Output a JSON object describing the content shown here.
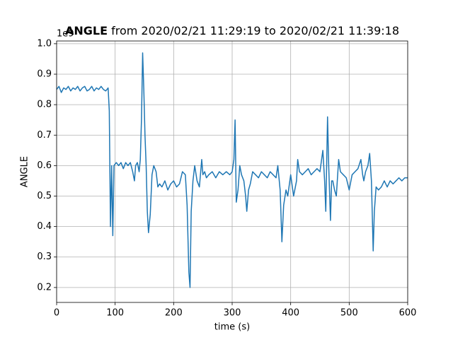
{
  "chart_data": {
    "type": "line",
    "title_bold": "ANGLE",
    "title": "from 2020/02/21 11:29:19 to 2020/02/21 11:39:18",
    "x_label": "time (s)",
    "y_label": "ANGLE",
    "offset_text": "1e9",
    "xlim": [
      0,
      600
    ],
    "ylim": [
      0.151,
      1.009
    ],
    "xticks": [
      0,
      100,
      200,
      300,
      400,
      500,
      600
    ],
    "yticks": [
      0.2,
      0.3,
      0.4,
      0.5,
      0.6,
      0.7,
      0.8,
      0.9,
      {
        "value": 1,
        "label": "1.0"
      }
    ],
    "grid": true,
    "series": [
      {
        "name": "ANGLE",
        "color": "#1f77b4",
        "x": [
          0,
          4,
          8,
          12,
          16,
          20,
          24,
          28,
          32,
          36,
          40,
          44,
          48,
          52,
          56,
          60,
          64,
          68,
          72,
          76,
          80,
          84,
          88,
          90,
          92,
          94,
          96,
          98,
          102,
          106,
          110,
          114,
          118,
          122,
          126,
          130,
          133,
          135,
          138,
          141,
          143,
          145,
          147,
          149,
          151,
          153,
          155,
          157,
          160,
          163,
          166,
          170,
          173,
          176,
          180,
          185,
          190,
          195,
          200,
          205,
          210,
          215,
          220,
          223,
          226,
          228,
          230,
          233,
          236,
          240,
          244,
          248,
          250,
          253,
          256,
          260,
          266,
          272,
          278,
          284,
          290,
          296,
          300,
          303,
          305,
          307,
          310,
          313,
          316,
          320,
          323,
          325,
          328,
          331,
          335,
          340,
          345,
          350,
          355,
          360,
          365,
          370,
          375,
          378,
          382,
          385,
          388,
          392,
          395,
          400,
          405,
          410,
          412,
          415,
          420,
          425,
          430,
          435,
          440,
          445,
          450,
          455,
          458,
          460,
          463,
          465,
          468,
          470,
          472,
          475,
          478,
          482,
          485,
          490,
          495,
          500,
          505,
          510,
          515,
          520,
          523,
          525,
          528,
          532,
          535,
          538,
          541,
          543,
          546,
          550,
          555,
          560,
          565,
          570,
          575,
          580,
          585,
          590,
          595,
          600
        ],
        "values": [
          0.85,
          0.86,
          0.84,
          0.855,
          0.85,
          0.86,
          0.845,
          0.855,
          0.85,
          0.86,
          0.845,
          0.855,
          0.86,
          0.845,
          0.85,
          0.86,
          0.845,
          0.855,
          0.85,
          0.86,
          0.85,
          0.845,
          0.855,
          0.78,
          0.4,
          0.6,
          0.37,
          0.6,
          0.61,
          0.6,
          0.61,
          0.59,
          0.61,
          0.6,
          0.61,
          0.58,
          0.55,
          0.6,
          0.61,
          0.58,
          0.62,
          0.75,
          0.97,
          0.85,
          0.7,
          0.6,
          0.45,
          0.38,
          0.44,
          0.57,
          0.6,
          0.58,
          0.53,
          0.54,
          0.53,
          0.55,
          0.52,
          0.54,
          0.55,
          0.53,
          0.54,
          0.58,
          0.57,
          0.47,
          0.25,
          0.2,
          0.45,
          0.55,
          0.6,
          0.55,
          0.53,
          0.62,
          0.57,
          0.58,
          0.56,
          0.57,
          0.58,
          0.56,
          0.58,
          0.57,
          0.58,
          0.57,
          0.58,
          0.62,
          0.75,
          0.48,
          0.52,
          0.6,
          0.57,
          0.55,
          0.5,
          0.45,
          0.52,
          0.54,
          0.58,
          0.57,
          0.56,
          0.58,
          0.57,
          0.56,
          0.58,
          0.57,
          0.56,
          0.6,
          0.52,
          0.35,
          0.47,
          0.52,
          0.5,
          0.57,
          0.5,
          0.55,
          0.62,
          0.58,
          0.57,
          0.58,
          0.59,
          0.57,
          0.58,
          0.59,
          0.58,
          0.65,
          0.55,
          0.45,
          0.76,
          0.6,
          0.42,
          0.55,
          0.55,
          0.52,
          0.5,
          0.62,
          0.58,
          0.57,
          0.56,
          0.52,
          0.57,
          0.58,
          0.59,
          0.62,
          0.57,
          0.55,
          0.58,
          0.6,
          0.64,
          0.55,
          0.32,
          0.45,
          0.53,
          0.52,
          0.53,
          0.55,
          0.53,
          0.55,
          0.54,
          0.55,
          0.56,
          0.55,
          0.56,
          0.56
        ]
      }
    ]
  }
}
